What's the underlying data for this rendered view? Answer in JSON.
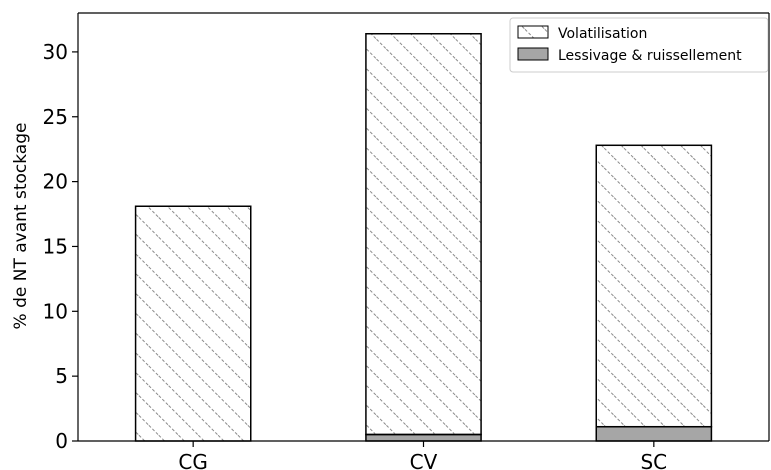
{
  "chart_data": {
    "type": "bar",
    "stacked": true,
    "categories": [
      "CG",
      "CV",
      "SC"
    ],
    "series": [
      {
        "name": "Lessivage & ruissellement",
        "values": [
          0.0,
          0.5,
          1.1
        ],
        "color": "#a6a6a6",
        "pattern": "solid"
      },
      {
        "name": "Volatilisation",
        "values": [
          18.1,
          30.9,
          21.7
        ],
        "color": "#ffffff",
        "pattern": "diagonal-hatch"
      }
    ],
    "legend_order": [
      "Volatilisation",
      "Lessivage & ruissellement"
    ],
    "ylabel": "% de NT avant stockage",
    "xlabel": "",
    "title": "",
    "ylim": [
      0,
      33
    ],
    "yticks": [
      0,
      5,
      10,
      15,
      20,
      25,
      30
    ],
    "grid": false,
    "legend_position": "top-right"
  }
}
